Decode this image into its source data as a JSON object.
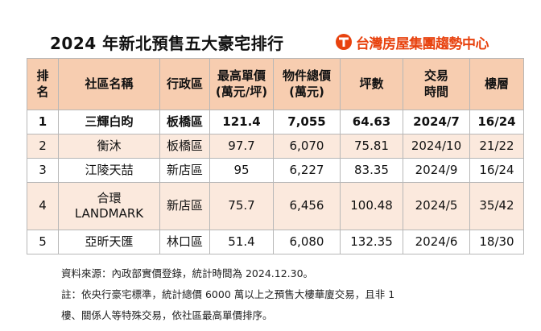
{
  "title": "2024 年新北預售五大豪宅排行",
  "brand": {
    "name": "台灣房屋集團趨勢中心",
    "icon": "taiwan-house-logo",
    "color": "#e8420e"
  },
  "table": {
    "header_color": "#f7cdb0",
    "headers": [
      [
        "排",
        "名"
      ],
      [
        "社區名稱"
      ],
      [
        "行政區"
      ],
      [
        "最高單價",
        "(萬元/坪)"
      ],
      [
        "物件總價",
        "(萬元)"
      ],
      [
        "坪數"
      ],
      [
        "交易",
        "時間"
      ],
      [
        "樓層"
      ]
    ],
    "rows": [
      {
        "rank": "1",
        "name": [
          "三輝白昀"
        ],
        "district": "板橋區",
        "max_unit_price": "121.4",
        "total_price": "7,055",
        "area": "64.63",
        "date": "2024/7",
        "floor": "16/24"
      },
      {
        "rank": "2",
        "name": [
          "衡沐"
        ],
        "district": "板橋區",
        "max_unit_price": "97.7",
        "total_price": "6,070",
        "area": "75.81",
        "date": "2024/10",
        "floor": "21/22"
      },
      {
        "rank": "3",
        "name": [
          "江陵天喆"
        ],
        "district": "新店區",
        "max_unit_price": "95",
        "total_price": "6,227",
        "area": "83.35",
        "date": "2024/9",
        "floor": "16/24"
      },
      {
        "rank": "4",
        "name": [
          "合環",
          "LANDMARK"
        ],
        "district": "新店區",
        "max_unit_price": "75.7",
        "total_price": "6,456",
        "area": "100.48",
        "date": "2024/5",
        "floor": "35/42"
      },
      {
        "rank": "5",
        "name": [
          "亞昕天匯"
        ],
        "district": "林口區",
        "max_unit_price": "51.4",
        "total_price": "6,080",
        "area": "132.35",
        "date": "2024/6",
        "floor": "18/30"
      }
    ]
  },
  "notes": [
    "資料來源：內政部實價登錄，統計時間為 2024.12.30。",
    "註：依央行豪宅標準，統計總價 6000 萬以上之預售大樓華廈交易，且非 1",
    "樓、關係人等特殊交易，依社區最高單價排序。"
  ]
}
